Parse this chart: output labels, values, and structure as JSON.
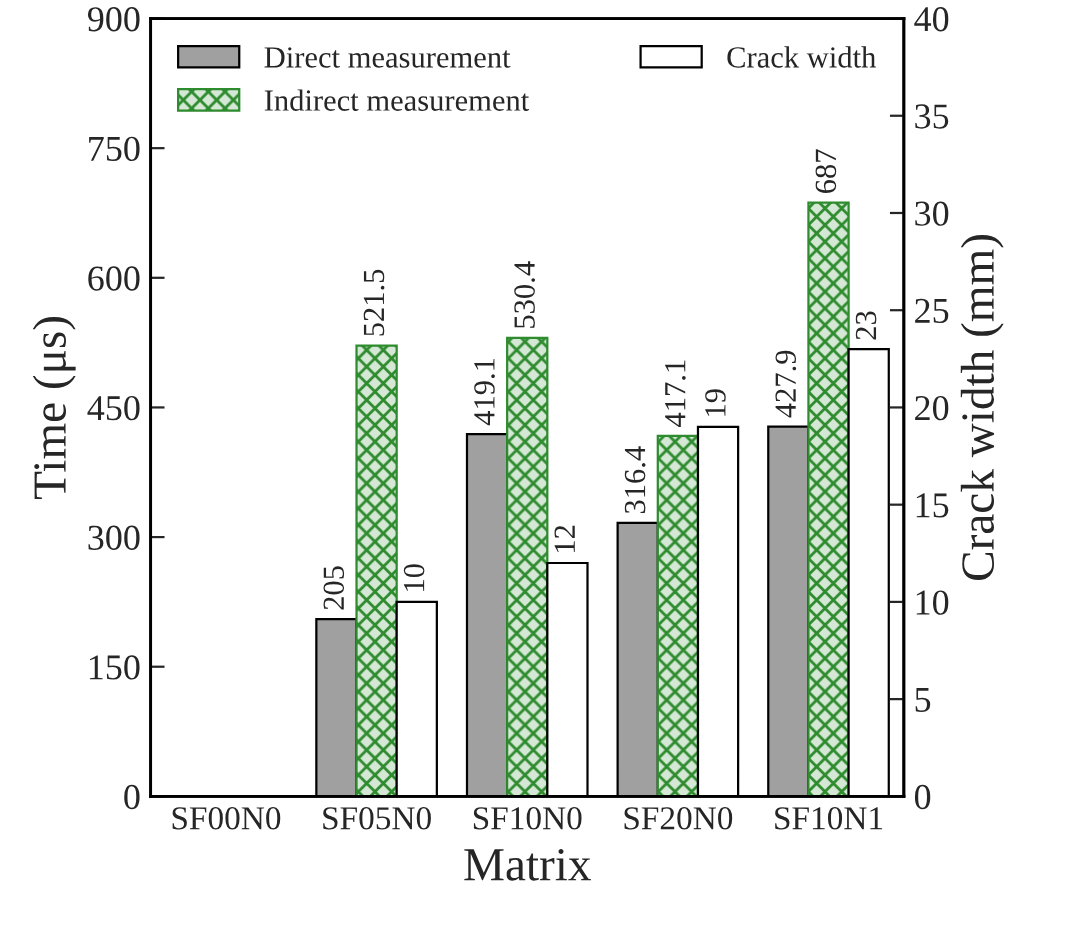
{
  "chart_data": {
    "type": "bar",
    "xlabel": "Matrix",
    "ylabel": "Time (μs)",
    "y2label": "Crack width (mm)",
    "categories": [
      "SF00N0",
      "SF05N0",
      "SF10N0",
      "SF20N0",
      "SF10N1"
    ],
    "series": [
      {
        "name": "Direct measurement",
        "color": "#a0a0a0",
        "values": [
          null,
          205,
          419.1,
          316.4,
          427.9
        ]
      },
      {
        "name": "Indirect measurement",
        "color": "#2e8b2e",
        "values": [
          null,
          521.5,
          530.4,
          417.1,
          687
        ]
      },
      {
        "name": "Crack width",
        "color": "#ffffff",
        "axis": "y2",
        "values": [
          null,
          10,
          12,
          19,
          23
        ]
      }
    ],
    "ylim": [
      0,
      900
    ],
    "yticks": [
      0,
      150,
      300,
      450,
      600,
      750,
      900
    ],
    "y2lim": [
      0,
      40
    ],
    "y2ticks": [
      0,
      5,
      10,
      15,
      20,
      25,
      30,
      35,
      40
    ],
    "data_labels": true,
    "legend": "top",
    "grid": false
  }
}
